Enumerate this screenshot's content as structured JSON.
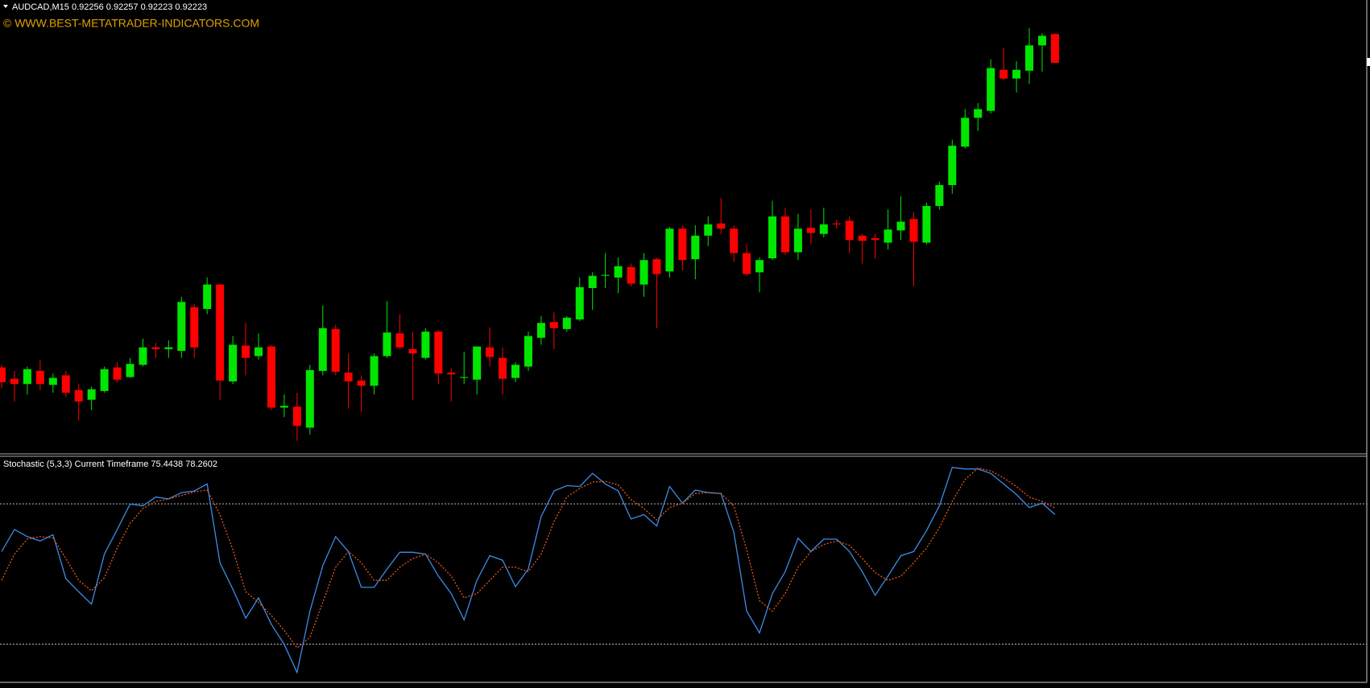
{
  "chart_data": [
    {
      "type": "candlestick",
      "title": "AUDCAD,M15  0.92256 0.92257 0.92223 0.92223",
      "subtitle": "© WWW.BEST-METATRADER-INDICATORS.COM",
      "up_color": "#00e600",
      "down_color": "#ff0000",
      "ylim": [
        0.91775,
        0.92295
      ],
      "open": [
        0.91874,
        0.91861,
        0.91855,
        0.9187,
        0.91854,
        0.91865,
        0.91848,
        0.91837,
        0.91847,
        0.91874,
        0.91863,
        0.91877,
        0.91897,
        0.91895,
        0.91893,
        0.91943,
        0.91941,
        0.91969,
        0.91858,
        0.91899,
        0.91887,
        0.91898,
        0.91828,
        0.91829,
        0.91805,
        0.9187,
        0.91918,
        0.91868,
        0.91859,
        0.91853,
        0.91887,
        0.91913,
        0.91895,
        0.91885,
        0.91915,
        0.91868,
        0.91862,
        0.9186,
        0.91897,
        0.91885,
        0.91862,
        0.91875,
        0.91908,
        0.91926,
        0.91918,
        0.91929,
        0.91965,
        0.91979,
        0.91977,
        0.91989,
        0.91969,
        0.91998,
        0.91984,
        0.92033,
        0.91998,
        0.92025,
        0.92039,
        0.92033,
        0.92005,
        0.91983,
        0.91999,
        0.92047,
        0.92006,
        0.92034,
        0.92027,
        0.92039,
        0.92042,
        0.92025,
        0.92022,
        0.92017,
        0.92031,
        0.92044,
        0.92017,
        0.92059,
        0.92083,
        0.92127,
        0.9216,
        0.92168,
        0.92215,
        0.92205,
        0.92214,
        0.92243,
        0.92256
      ],
      "high": [
        0.91877,
        0.9187,
        0.91875,
        0.91882,
        0.91867,
        0.9187,
        0.91855,
        0.91852,
        0.91875,
        0.9188,
        0.91885,
        0.91907,
        0.91902,
        0.91905,
        0.91955,
        0.91947,
        0.91977,
        0.9197,
        0.9191,
        0.91925,
        0.91913,
        0.919,
        0.91843,
        0.91845,
        0.91877,
        0.91945,
        0.91923,
        0.9189,
        0.91865,
        0.9189,
        0.9195,
        0.91935,
        0.91915,
        0.91919,
        0.91917,
        0.91873,
        0.91892,
        0.91898,
        0.9192,
        0.91897,
        0.9188,
        0.91915,
        0.91933,
        0.91937,
        0.91933,
        0.91977,
        0.91983,
        0.92005,
        0.92,
        0.91993,
        0.92005,
        0.92,
        0.92035,
        0.92037,
        0.92037,
        0.92047,
        0.92068,
        0.92037,
        0.92015,
        0.92,
        0.92065,
        0.92057,
        0.9205,
        0.92055,
        0.92057,
        0.92043,
        0.92047,
        0.92027,
        0.92027,
        0.92055,
        0.9207,
        0.92052,
        0.92063,
        0.92087,
        0.92135,
        0.9217,
        0.92177,
        0.92227,
        0.9224,
        0.92225,
        0.92263,
        0.92257,
        0.92257
      ],
      "low": [
        0.9185,
        0.91835,
        0.91843,
        0.91848,
        0.91845,
        0.9184,
        0.91813,
        0.91825,
        0.91845,
        0.91857,
        0.91862,
        0.91875,
        0.91885,
        0.91885,
        0.91885,
        0.91885,
        0.91935,
        0.91837,
        0.91855,
        0.91865,
        0.91883,
        0.91825,
        0.91817,
        0.9179,
        0.91797,
        0.91865,
        0.91865,
        0.91827,
        0.91823,
        0.91843,
        0.91885,
        0.91895,
        0.91837,
        0.91883,
        0.91855,
        0.91835,
        0.91855,
        0.91843,
        0.91875,
        0.91843,
        0.91857,
        0.9187,
        0.919,
        0.91895,
        0.91915,
        0.91927,
        0.9194,
        0.91965,
        0.91959,
        0.91967,
        0.91955,
        0.91919,
        0.91977,
        0.91985,
        0.91975,
        0.92013,
        0.92027,
        0.91995,
        0.91979,
        0.9196,
        0.91997,
        0.92003,
        0.91997,
        0.92015,
        0.92023,
        0.92033,
        0.92005,
        0.91993,
        0.91999,
        0.92009,
        0.9202,
        0.91967,
        0.92015,
        0.92055,
        0.92073,
        0.92125,
        0.92145,
        0.92165,
        0.92203,
        0.92189,
        0.92199,
        0.92213,
        0.92223
      ],
      "close": [
        0.91857,
        0.91855,
        0.91872,
        0.91855,
        0.91862,
        0.91845,
        0.91835,
        0.91849,
        0.91872,
        0.9186,
        0.91878,
        0.91897,
        0.91895,
        0.91897,
        0.91949,
        0.91897,
        0.91969,
        0.91859,
        0.919,
        0.91885,
        0.91897,
        0.91828,
        0.9183,
        0.91807,
        0.91871,
        0.91919,
        0.91869,
        0.91858,
        0.91853,
        0.91887,
        0.91914,
        0.91897,
        0.9189,
        0.91915,
        0.91867,
        0.91866,
        0.91863,
        0.91898,
        0.91886,
        0.91861,
        0.91877,
        0.9191,
        0.91925,
        0.91919,
        0.91931,
        0.91966,
        0.91979,
        0.9198,
        0.9199,
        0.9197,
        0.91997,
        0.91981,
        0.92033,
        0.91997,
        0.92025,
        0.92038,
        0.92033,
        0.92005,
        0.91981,
        0.91997,
        0.92047,
        0.92006,
        0.92033,
        0.92028,
        0.92038,
        0.92038,
        0.9202,
        0.92019,
        0.9202,
        0.92032,
        0.92041,
        0.92018,
        0.92059,
        0.92083,
        0.92128,
        0.9216,
        0.9217,
        0.92217,
        0.92205,
        0.92215,
        0.92243,
        0.92254,
        0.92223
      ]
    },
    {
      "type": "line",
      "title": "Stochastic (5,3,3) Current Timeframe 75.4438 78.2602",
      "ylim": [
        4,
        100
      ],
      "levels": [
        80,
        20
      ],
      "series": [
        {
          "color": "#3c8ce6",
          "dash": false,
          "values": [
            59.6,
            69.0,
            66.0,
            64.1,
            66.8,
            48.0,
            42.4,
            37.1,
            58.5,
            69.0,
            79.9,
            79.1,
            82.9,
            82.1,
            84.8,
            85.5,
            88.5,
            54.8,
            43.5,
            31.1,
            39.8,
            28.5,
            19.9,
            7.9,
            34.1,
            53.6,
            66.0,
            59.6,
            44.3,
            44.3,
            52.1,
            59.3,
            59.3,
            58.5,
            49.1,
            41.6,
            30.4,
            47.3,
            57.8,
            55.9,
            44.6,
            52.1,
            74.6,
            85.5,
            87.8,
            87.4,
            93.0,
            88.5,
            85.5,
            73.5,
            75.4,
            70.5,
            87.4,
            80.3,
            85.9,
            84.8,
            84.4,
            67.9,
            34.1,
            24.8,
            41.6,
            51.0,
            65.3,
            59.6,
            64.9,
            64.9,
            59.6,
            51.0,
            40.9,
            49.1,
            57.8,
            59.6,
            68.6,
            79.1,
            95.6,
            94.9,
            94.9,
            93.0,
            88.5,
            84.0,
            78.4,
            80.3,
            75.4438
          ]
        },
        {
          "color": "#e8561e",
          "dash": true,
          "values": [
            47.3,
            58.5,
            64.9,
            66.0,
            65.3,
            56.6,
            47.3,
            42.8,
            48.4,
            61.1,
            71.6,
            78.0,
            81.0,
            82.1,
            83.6,
            85.1,
            85.9,
            75.4,
            60.4,
            42.4,
            37.9,
            32.3,
            25.9,
            18.4,
            22.9,
            37.9,
            52.9,
            59.6,
            54.8,
            47.3,
            47.3,
            52.9,
            56.6,
            58.5,
            54.8,
            49.1,
            39.8,
            41.6,
            47.3,
            52.9,
            52.9,
            51.0,
            58.5,
            72.4,
            82.9,
            86.6,
            89.3,
            89.6,
            88.1,
            81.8,
            78.0,
            73.1,
            78.4,
            80.3,
            84.4,
            84.8,
            84.4,
            79.1,
            60.4,
            38.6,
            34.1,
            41.6,
            52.9,
            59.6,
            62.6,
            64.1,
            62.3,
            56.6,
            50.6,
            47.3,
            49.1,
            54.8,
            61.1,
            69.8,
            81.0,
            90.4,
            95.3,
            94.1,
            91.1,
            87.4,
            82.9,
            81.0,
            78.2602
          ]
        }
      ]
    }
  ]
}
